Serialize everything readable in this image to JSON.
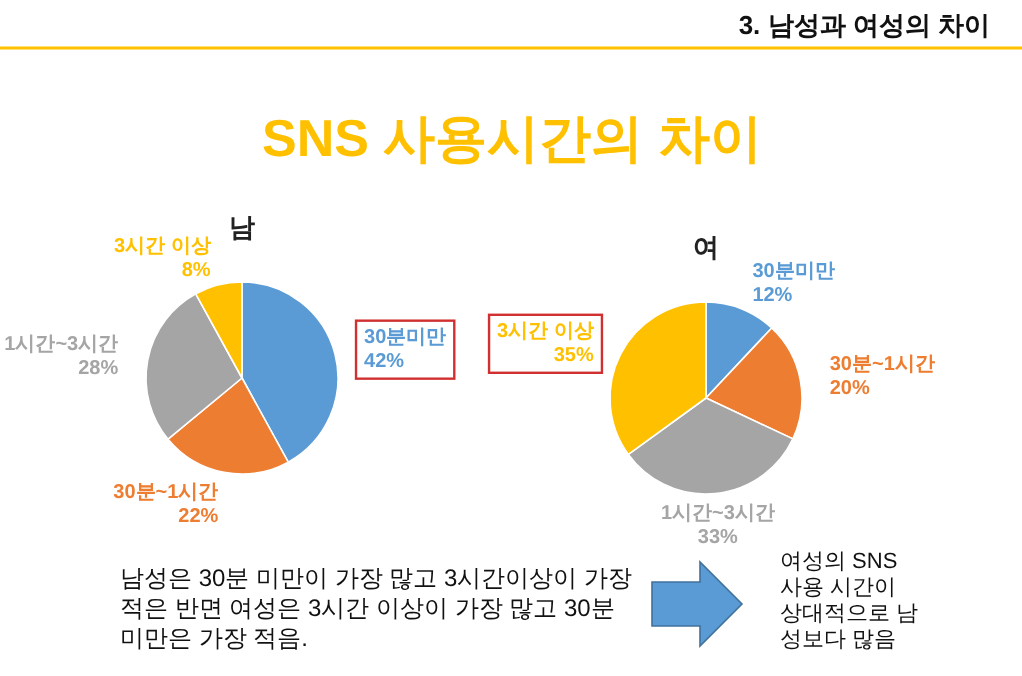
{
  "chart_data": [
    {
      "type": "other",
      "title": "SNS 사용시간의 차이",
      "subtitle": "3. 남성과 여성의 차이",
      "annotations": [
        "남성은 30분 미만이 가장 많고 3시간이상이 가장 적은 반면 여성은 3시간 이상이 가장 많고 30분 미만은 가장 적음.",
        "여성의 SNS 사용 시간이 상대적으로 남성보다 많음"
      ]
    },
    {
      "type": "pie",
      "title": "남",
      "categories": [
        "30분미만",
        "30분~1시간",
        "1시간~3시간",
        "3시간 이상"
      ],
      "values": [
        42,
        22,
        28,
        8
      ],
      "value_labels": [
        "42%",
        "22%",
        "28%",
        "8%"
      ],
      "colors": [
        "#5b9bd5",
        "#ed7d31",
        "#a5a5a5",
        "#ffc000"
      ]
    },
    {
      "type": "pie",
      "title": "여",
      "categories": [
        "30분미만",
        "30분~1시간",
        "1시간~3시간",
        "3시간 이상"
      ],
      "values": [
        12,
        20,
        33,
        35
      ],
      "value_labels": [
        "12%",
        "20%",
        "33%",
        "35%"
      ],
      "colors": [
        "#5b9bd5",
        "#ed7d31",
        "#a5a5a5",
        "#ffc000"
      ]
    }
  ]
}
